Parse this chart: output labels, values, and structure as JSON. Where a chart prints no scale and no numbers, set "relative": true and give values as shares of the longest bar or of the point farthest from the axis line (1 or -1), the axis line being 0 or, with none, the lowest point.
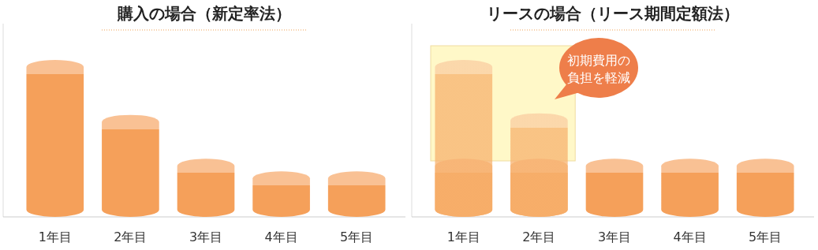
{
  "chart_data": [
    {
      "type": "bar",
      "title": "購入の場合（新定率法）",
      "relative": true,
      "categories": [
        "1年目",
        "2年目",
        "3年目",
        "4年目",
        "5年目"
      ],
      "series": [
        {
          "color": "#f5a05a",
          "values": [
            1,
            0.65,
            0.37,
            0.29,
            0.29
          ]
        }
      ]
    },
    {
      "type": "bar",
      "title": "リースの場合（リース期間定額法）",
      "relative": true,
      "categories": [
        "1年目",
        "2年目",
        "3年目",
        "4年目",
        "5年目"
      ],
      "series": [
        {
          "color": "#f5a05a",
          "values": [
            0.37,
            0.37,
            0.37,
            0.37,
            0.37
          ]
        },
        {
          "color": "#f7b26e",
          "values": [
            1,
            0.66,
            null,
            null,
            null
          ]
        }
      ],
      "bands": [
        {
          "axis": "x",
          "from": "1年目",
          "to": "2年目",
          "color": "#fff8c8"
        }
      ],
      "annotations": [
        "初期費用の負担を軽減"
      ]
    }
  ]
}
